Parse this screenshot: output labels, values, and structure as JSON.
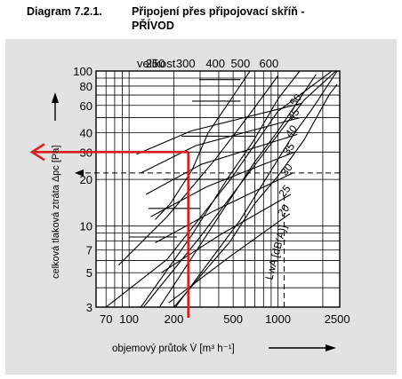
{
  "caption": {
    "number": "Diagram 7.2.1.",
    "title_line1": "Připojení přes připojovací skříň -",
    "title_line2": "PŘÍVOD"
  },
  "chart_data": {
    "type": "line",
    "scale": "log-log",
    "xlabel": "objemový průtok V̇ [m³ h⁻¹]",
    "ylabel": "celková tlaková ztráta Δpc [Pa]",
    "xlim": [
      60,
      2600
    ],
    "ylim": [
      3,
      100
    ],
    "x_ticks": [
      "70",
      "100",
      "200",
      "500",
      "1000",
      "2500"
    ],
    "x_tick_values": [
      70,
      100,
      200,
      500,
      1000,
      2500
    ],
    "y_ticks": [
      "3",
      "5",
      "7",
      "10",
      "20",
      "30",
      "40",
      "60",
      "80",
      "100"
    ],
    "y_tick_values": [
      3,
      5,
      7,
      10,
      20,
      30,
      40,
      60,
      80,
      100
    ],
    "size_label": "velikost",
    "sizes": [
      {
        "label": "250",
        "x": 150
      },
      {
        "label": "300",
        "x": 240
      },
      {
        "label": "400",
        "x": 380
      },
      {
        "label": "500",
        "x": 560
      },
      {
        "label": "600",
        "x": 870
      }
    ],
    "noise_label": "LwA [dB(A)]",
    "noise_curves": [
      {
        "label": "20",
        "points": [
          [
            185,
            3.2
          ],
          [
            470,
            6.3
          ],
          [
            1200,
            12
          ]
        ]
      },
      {
        "label": "25",
        "points": [
          [
            165,
            5.0
          ],
          [
            410,
            8.8
          ],
          [
            1220,
            16
          ]
        ]
      },
      {
        "label": "30",
        "points": [
          [
            150,
            7.8
          ],
          [
            370,
            12.5
          ],
          [
            1260,
            22
          ]
        ]
      },
      {
        "label": "35",
        "points": [
          [
            140,
            11.5
          ],
          [
            335,
            18
          ],
          [
            1300,
            30
          ]
        ]
      },
      {
        "label": "40",
        "points": [
          [
            130,
            16
          ],
          [
            305,
            25
          ],
          [
            1350,
            39
          ]
        ]
      },
      {
        "label": "45",
        "points": [
          [
            120,
            22
          ],
          [
            280,
            33
          ],
          [
            1400,
            50
          ]
        ]
      },
      {
        "label": "50",
        "points": [
          [
            112,
            29
          ],
          [
            260,
            41
          ],
          [
            1450,
            62
          ]
        ]
      }
    ],
    "pressure_curves": [
      {
        "points": [
          [
            70,
            3.0
          ],
          [
            180,
            6.1
          ],
          [
            480,
            20
          ],
          [
            1000,
            55
          ],
          [
            2300,
            100
          ]
        ]
      },
      {
        "points": [
          [
            125,
            3.0
          ],
          [
            300,
            8.5
          ],
          [
            750,
            27
          ],
          [
            1500,
            65
          ],
          [
            2450,
            100
          ]
        ]
      },
      {
        "points": [
          [
            205,
            3.0
          ],
          [
            560,
            11
          ],
          [
            1250,
            38
          ],
          [
            1700,
            57
          ],
          [
            2500,
            100
          ]
        ]
      }
    ],
    "size_lines": [
      {
        "points": [
          [
            85,
            5.6
          ],
          [
            180,
            11.5
          ],
          [
            380,
            27
          ],
          [
            620,
            50
          ],
          [
            1000,
            93
          ]
        ]
      },
      {
        "points": [
          [
            120,
            3.0
          ],
          [
            265,
            8.8
          ],
          [
            470,
            21
          ],
          [
            680,
            35
          ],
          [
            1000,
            66
          ],
          [
            1400,
            100
          ]
        ]
      },
      {
        "points": [
          [
            160,
            3.0
          ],
          [
            400,
            11.5
          ],
          [
            700,
            26
          ],
          [
            1000,
            41
          ],
          [
            1800,
            95
          ]
        ]
      },
      {
        "points": [
          [
            200,
            3.0
          ],
          [
            480,
            8
          ],
          [
            700,
            14
          ],
          [
            1000,
            21
          ],
          [
            1500,
            36
          ],
          [
            2200,
            70
          ],
          [
            2500,
            82
          ]
        ]
      },
      {
        "points": [
          [
            150,
            11
          ],
          [
            190,
            14
          ],
          [
            265,
            23
          ],
          [
            340,
            40
          ],
          [
            470,
            63
          ],
          [
            650,
            100
          ]
        ]
      }
    ],
    "horizontal_segments": [
      {
        "x": [
          100,
          210
        ],
        "y": 8.5
      },
      {
        "x": [
          135,
          300
        ],
        "y": 13
      },
      {
        "x": [
          170,
          480
        ],
        "y": 20
      },
      {
        "x": [
          225,
          700
        ],
        "y": 38
      },
      {
        "x": [
          265,
          560
        ],
        "y": 64
      },
      {
        "x": [
          295,
          560
        ],
        "y": 88
      }
    ],
    "example": {
      "flow": 250,
      "pressure": 30,
      "dashed_pressure": 22,
      "dashed_flow": 1100
    }
  }
}
